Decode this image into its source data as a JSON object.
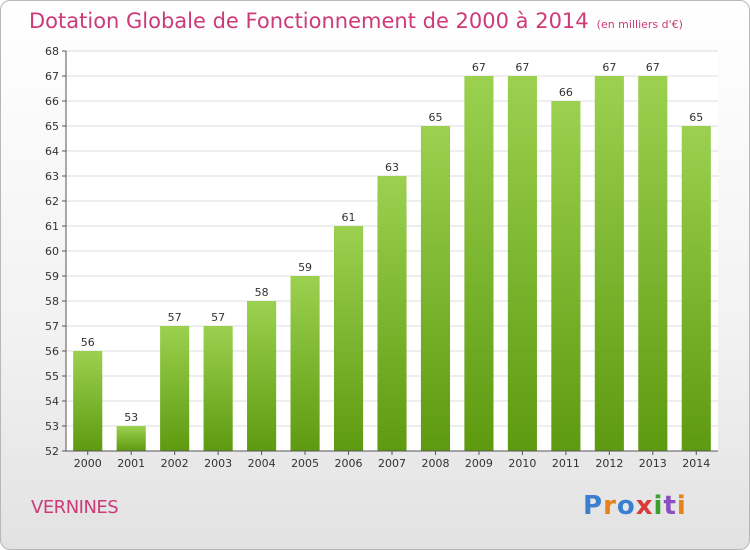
{
  "header": {
    "title": "Dotation Globale de Fonctionnement de 2000 à 2014",
    "unit": "(en milliers d'€)"
  },
  "footer": {
    "place": "VERNINES",
    "logo": "Proxiti"
  },
  "colors": {
    "bar_light": "#9bd14f",
    "bar_dark": "#5e9a10",
    "title": "#cc3a78",
    "grid": "#dddddd"
  },
  "chart_data": {
    "type": "bar",
    "categories": [
      "2000",
      "2001",
      "2002",
      "2003",
      "2004",
      "2005",
      "2006",
      "2007",
      "2008",
      "2009",
      "2010",
      "2011",
      "2012",
      "2013",
      "2014"
    ],
    "values": [
      56,
      53,
      57,
      57,
      58,
      59,
      61,
      63,
      65,
      67,
      67,
      66,
      67,
      67,
      65
    ],
    "data_labels": [
      "56",
      "53",
      "57",
      "57",
      "58",
      "59",
      "61",
      "63",
      "65",
      "67",
      "67",
      "66",
      "67",
      "67",
      "65"
    ],
    "title": "Dotation Globale de Fonctionnement de 2000 à 2014",
    "subtitle": "(en milliers d'€)",
    "xlabel": "",
    "ylabel": "",
    "ylim": [
      52,
      68
    ],
    "yticks": [
      52,
      53,
      54,
      55,
      56,
      57,
      58,
      59,
      60,
      61,
      62,
      63,
      64,
      65,
      66,
      67,
      68
    ],
    "grid": true,
    "legend": "none"
  }
}
